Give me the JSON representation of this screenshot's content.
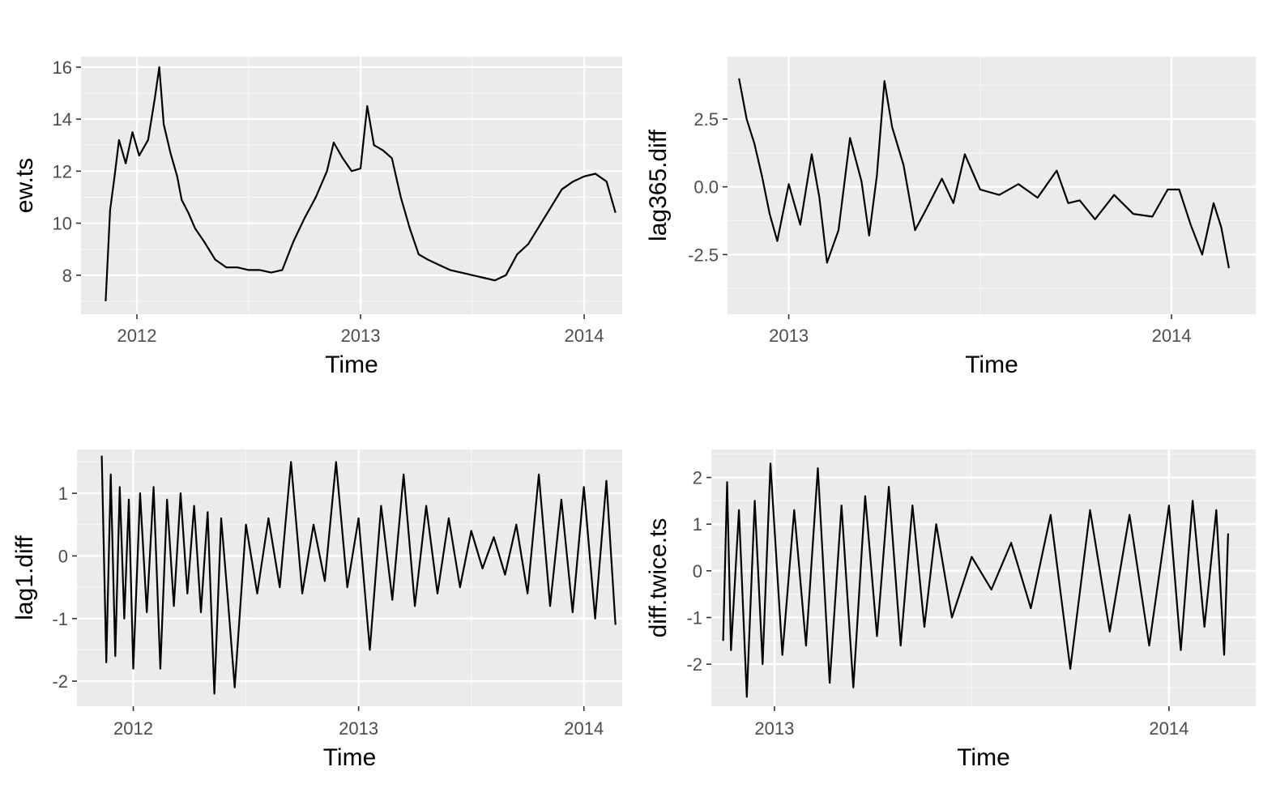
{
  "chart_data": [
    {
      "type": "line",
      "xlabel": "Time",
      "ylabel": "ew.ts",
      "xlim": [
        2011.75,
        2014.17
      ],
      "ylim": [
        6.5,
        16.4
      ],
      "xticks": [
        2012,
        2013,
        2014
      ],
      "xtick_labels": [
        "2012",
        "2013",
        "2014"
      ],
      "yticks": [
        8,
        10,
        12,
        14,
        16
      ],
      "ytick_labels": [
        "8",
        "10",
        "12",
        "14",
        "16"
      ],
      "grid": true,
      "series": [
        {
          "x": [
            2011.86,
            2011.88,
            2011.9,
            2011.92,
            2011.95,
            2011.98,
            2012.01,
            2012.05,
            2012.08,
            2012.1,
            2012.12,
            2012.15,
            2012.18,
            2012.2,
            2012.23,
            2012.26,
            2012.3,
            2012.35,
            2012.4,
            2012.45,
            2012.5,
            2012.55,
            2012.6,
            2012.65,
            2012.7,
            2012.75,
            2012.8,
            2012.85,
            2012.88,
            2012.92,
            2012.96,
            2013.0,
            2013.03,
            2013.06,
            2013.1,
            2013.14,
            2013.18,
            2013.22,
            2013.26,
            2013.3,
            2013.35,
            2013.4,
            2013.45,
            2013.5,
            2013.55,
            2013.6,
            2013.65,
            2013.7,
            2013.75,
            2013.8,
            2013.85,
            2013.9,
            2013.95,
            2014.0,
            2014.05,
            2014.1,
            2014.14
          ],
          "y": [
            7.0,
            10.5,
            11.8,
            13.2,
            12.3,
            13.5,
            12.6,
            13.2,
            14.8,
            16.0,
            13.8,
            12.7,
            11.8,
            10.9,
            10.4,
            9.8,
            9.3,
            8.6,
            8.3,
            8.3,
            8.2,
            8.2,
            8.1,
            8.2,
            9.3,
            10.2,
            11.0,
            12.0,
            13.1,
            12.5,
            12.0,
            12.1,
            14.5,
            13.0,
            12.8,
            12.5,
            11.0,
            9.8,
            8.8,
            8.6,
            8.4,
            8.2,
            8.1,
            8.0,
            7.9,
            7.8,
            8.0,
            8.8,
            9.2,
            9.9,
            10.6,
            11.3,
            11.6,
            11.8,
            11.9,
            11.6,
            10.4
          ]
        }
      ]
    },
    {
      "type": "line",
      "xlabel": "Time",
      "ylabel": "lag365.diff",
      "xlim": [
        2012.84,
        2014.22
      ],
      "ylim": [
        -4.7,
        4.8
      ],
      "xticks": [
        2013,
        2014
      ],
      "xtick_labels": [
        "2013",
        "2014"
      ],
      "yticks": [
        -2.5,
        0.0,
        2.5
      ],
      "ytick_labels": [
        "-2.5",
        "0.0",
        "2.5"
      ],
      "grid": true,
      "series": [
        {
          "x": [
            2012.87,
            2012.89,
            2012.91,
            2012.93,
            2012.95,
            2012.97,
            2013.0,
            2013.03,
            2013.06,
            2013.08,
            2013.1,
            2013.13,
            2013.16,
            2013.19,
            2013.21,
            2013.23,
            2013.25,
            2013.27,
            2013.3,
            2013.33,
            2013.36,
            2013.4,
            2013.43,
            2013.46,
            2013.5,
            2013.55,
            2013.6,
            2013.65,
            2013.7,
            2013.73,
            2013.76,
            2013.8,
            2013.85,
            2013.9,
            2013.95,
            2013.99,
            2014.02,
            2014.05,
            2014.08,
            2014.11,
            2014.13,
            2014.15
          ],
          "y": [
            4.0,
            2.5,
            1.6,
            0.4,
            -1.0,
            -2.0,
            0.1,
            -1.4,
            1.2,
            -0.4,
            -2.8,
            -1.6,
            1.8,
            0.2,
            -1.8,
            0.4,
            3.9,
            2.2,
            0.8,
            -1.6,
            -0.8,
            0.3,
            -0.6,
            1.2,
            -0.1,
            -0.3,
            0.1,
            -0.4,
            0.6,
            -0.6,
            -0.5,
            -1.2,
            -0.3,
            -1.0,
            -1.1,
            -0.1,
            -0.1,
            -1.4,
            -2.5,
            -0.6,
            -1.5,
            -3.0
          ]
        }
      ]
    },
    {
      "type": "line",
      "xlabel": "Time",
      "ylabel": "lag1.diff",
      "xlim": [
        2011.75,
        2014.17
      ],
      "ylim": [
        -2.4,
        1.7
      ],
      "xticks": [
        2012,
        2013,
        2014
      ],
      "xtick_labels": [
        "2012",
        "2013",
        "2014"
      ],
      "yticks": [
        -2,
        -1,
        0,
        1
      ],
      "ytick_labels": [
        "-2",
        "-1",
        "0",
        "1"
      ],
      "grid": true,
      "series": [
        {
          "x": [
            2011.86,
            2011.88,
            2011.9,
            2011.92,
            2011.94,
            2011.96,
            2011.98,
            2012.0,
            2012.03,
            2012.06,
            2012.09,
            2012.12,
            2012.15,
            2012.18,
            2012.21,
            2012.24,
            2012.27,
            2012.3,
            2012.33,
            2012.36,
            2012.39,
            2012.42,
            2012.45,
            2012.5,
            2012.55,
            2012.6,
            2012.65,
            2012.7,
            2012.75,
            2012.8,
            2012.85,
            2012.9,
            2012.95,
            2013.0,
            2013.05,
            2013.1,
            2013.15,
            2013.2,
            2013.25,
            2013.3,
            2013.35,
            2013.4,
            2013.45,
            2013.5,
            2013.55,
            2013.6,
            2013.65,
            2013.7,
            2013.75,
            2013.8,
            2013.85,
            2013.9,
            2013.95,
            2014.0,
            2014.05,
            2014.1,
            2014.14
          ],
          "y": [
            1.6,
            -1.7,
            1.3,
            -1.6,
            1.1,
            -1.0,
            0.9,
            -1.8,
            1.0,
            -0.9,
            1.1,
            -1.8,
            0.9,
            -0.8,
            1.0,
            -0.6,
            0.8,
            -0.9,
            0.7,
            -2.2,
            0.6,
            -0.7,
            -2.1,
            0.5,
            -0.6,
            0.6,
            -0.5,
            1.5,
            -0.6,
            0.5,
            -0.4,
            1.5,
            -0.5,
            0.6,
            -1.5,
            0.8,
            -0.7,
            1.3,
            -0.8,
            0.8,
            -0.6,
            0.6,
            -0.5,
            0.4,
            -0.2,
            0.3,
            -0.3,
            0.5,
            -0.6,
            1.3,
            -0.8,
            0.9,
            -0.9,
            1.1,
            -1.0,
            1.2,
            -1.1
          ]
        }
      ]
    },
    {
      "type": "line",
      "xlabel": "Time",
      "ylabel": "diff.twice.ts",
      "xlim": [
        2012.84,
        2014.22
      ],
      "ylim": [
        -2.9,
        2.6
      ],
      "xticks": [
        2013,
        2014
      ],
      "xtick_labels": [
        "2013",
        "2014"
      ],
      "yticks": [
        -2,
        -1,
        0,
        1,
        2
      ],
      "ytick_labels": [
        "-2",
        "-1",
        "0",
        "1",
        "2"
      ],
      "grid": true,
      "series": [
        {
          "x": [
            2012.87,
            2012.88,
            2012.89,
            2012.91,
            2012.93,
            2012.95,
            2012.97,
            2012.99,
            2013.02,
            2013.05,
            2013.08,
            2013.11,
            2013.14,
            2013.17,
            2013.2,
            2013.23,
            2013.26,
            2013.29,
            2013.32,
            2013.35,
            2013.38,
            2013.41,
            2013.45,
            2013.5,
            2013.55,
            2013.6,
            2013.65,
            2013.7,
            2013.75,
            2013.8,
            2013.85,
            2013.9,
            2013.95,
            2014.0,
            2014.03,
            2014.06,
            2014.09,
            2014.12,
            2014.14,
            2014.15
          ],
          "y": [
            -1.5,
            1.9,
            -1.7,
            1.3,
            -2.7,
            1.5,
            -2.0,
            2.3,
            -1.8,
            1.3,
            -1.6,
            2.2,
            -2.4,
            1.4,
            -2.5,
            1.6,
            -1.4,
            1.8,
            -1.6,
            1.4,
            -1.2,
            1.0,
            -1.0,
            0.3,
            -0.4,
            0.6,
            -0.8,
            1.2,
            -2.1,
            1.3,
            -1.3,
            1.2,
            -1.6,
            1.4,
            -1.7,
            1.5,
            -1.2,
            1.3,
            -1.8,
            0.8
          ]
        }
      ]
    }
  ]
}
